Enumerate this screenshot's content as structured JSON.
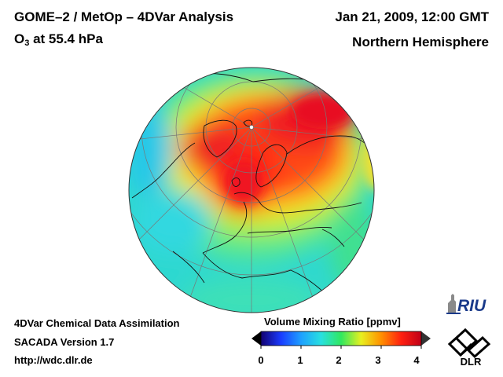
{
  "header": {
    "title_line1": "GOME–2 / MetOp – 4DVar Analysis",
    "title_line2_main": "O",
    "title_line2_sub": "3",
    "title_line2_rest": " at 55.4 hPa",
    "datetime": "Jan 21, 2009, 12:00 GMT",
    "region": "Northern Hemisphere"
  },
  "footer": {
    "line1": "4DVar Chemical Data Assimilation",
    "line2": "SACADA Version 1.7",
    "line3": "http://wdc.dlr.de"
  },
  "colorbar": {
    "title": "Volume Mixing Ratio [ppmv]",
    "ticks": [
      "0",
      "1",
      "2",
      "3",
      "4"
    ],
    "range": [
      0,
      4
    ],
    "colors": [
      "#120070",
      "#1a3cff",
      "#1ea0ff",
      "#28e0e0",
      "#30e860",
      "#e8f020",
      "#ff9000",
      "#ff2010",
      "#c00018"
    ]
  },
  "logos": {
    "riu": "RIU",
    "dlr": "DLR"
  }
}
